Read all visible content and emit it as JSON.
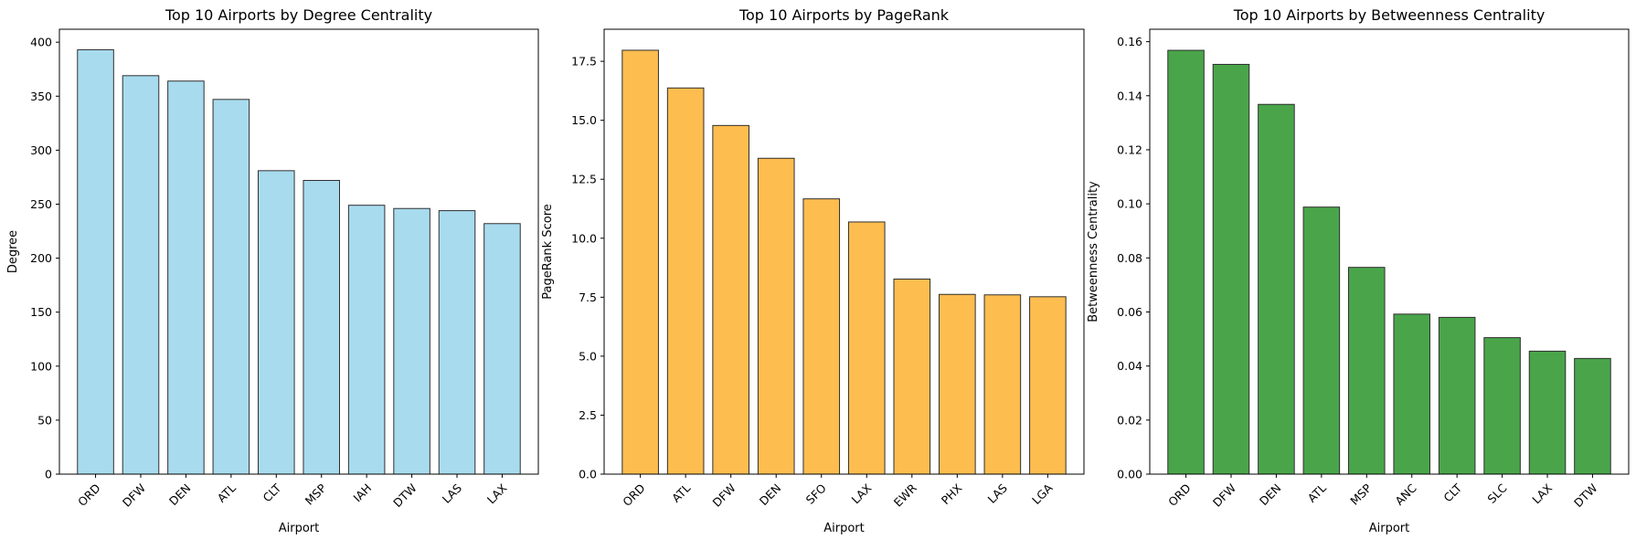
{
  "chart_data": [
    {
      "type": "bar",
      "title": "Top 10 Airports by Degree Centrality",
      "xlabel": "Airport",
      "ylabel": "Degree",
      "categories": [
        "ORD",
        "DFW",
        "DEN",
        "ATL",
        "CLT",
        "MSP",
        "IAH",
        "DTW",
        "LAS",
        "LAX"
      ],
      "values": [
        393,
        369,
        364,
        347,
        281,
        272,
        249,
        246,
        244,
        232
      ],
      "ylim": [
        0,
        412
      ],
      "yticks": [
        0,
        50,
        100,
        150,
        200,
        250,
        300,
        350,
        400
      ],
      "ytick_decimals": 0,
      "color": "#a8dbee",
      "grid": false
    },
    {
      "type": "bar",
      "title": "Top 10 Airports by PageRank",
      "xlabel": "Airport",
      "ylabel": "PageRank Score",
      "categories": [
        "ORD",
        "ATL",
        "DFW",
        "DEN",
        "SFO",
        "LAX",
        "EWR",
        "PHX",
        "LAS",
        "LGA"
      ],
      "values": [
        17.97,
        16.37,
        14.78,
        13.39,
        11.67,
        10.69,
        8.27,
        7.62,
        7.6,
        7.52
      ],
      "ylim": [
        0,
        18.86
      ],
      "yticks": [
        0.0,
        2.5,
        5.0,
        7.5,
        10.0,
        12.5,
        15.0,
        17.5
      ],
      "ytick_decimals": 1,
      "color": "#fdbd4f",
      "grid": false
    },
    {
      "type": "bar",
      "title": "Top 10 Airports by Betweenness Centrality",
      "xlabel": "Airport",
      "ylabel": "Betweenness Centrality",
      "categories": [
        "ORD",
        "DFW",
        "DEN",
        "ATL",
        "MSP",
        "ANC",
        "CLT",
        "SLC",
        "LAX",
        "DTW"
      ],
      "values": [
        0.1568,
        0.1516,
        0.1368,
        0.0988,
        0.0765,
        0.0592,
        0.058,
        0.0505,
        0.0455,
        0.0428
      ],
      "ylim": [
        0,
        0.1646
      ],
      "yticks": [
        0.0,
        0.02,
        0.04,
        0.06,
        0.08,
        0.1,
        0.12,
        0.14,
        0.16
      ],
      "ytick_decimals": 2,
      "color": "#4aa54a",
      "grid": false
    }
  ]
}
